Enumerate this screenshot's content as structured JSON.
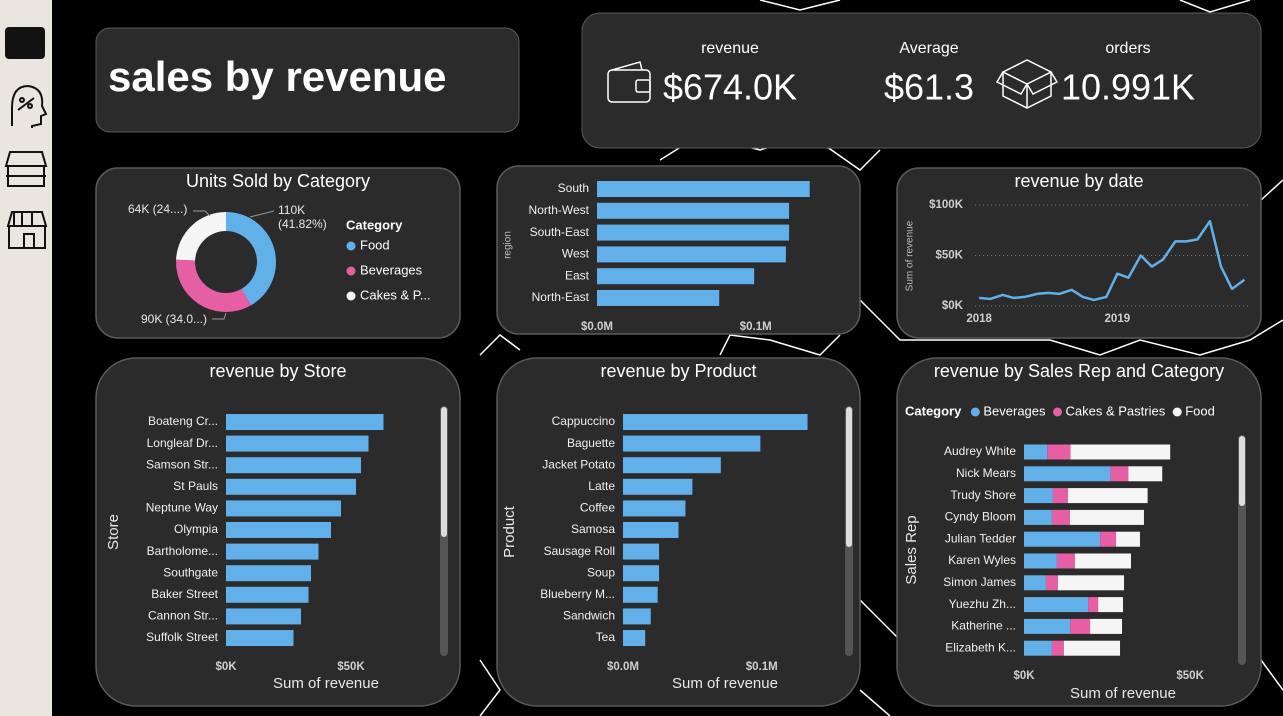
{
  "title": "sales by revenue",
  "kpis": [
    {
      "label": "revenue",
      "value": "$674.0K"
    },
    {
      "label": "Average",
      "value": "$61.3"
    },
    {
      "label": "orders",
      "value": "10.991K"
    }
  ],
  "chart_data": [
    {
      "type": "pie",
      "donut": true,
      "title": "Units Sold by Category",
      "legend_title": "Category",
      "categories": [
        "Food",
        "Beverages",
        "Cakes & P..."
      ],
      "values": [
        110000,
        90000,
        64000
      ],
      "value_labels": [
        "110K (41.82%)",
        "90K (34.0...)",
        "64K (24....)"
      ],
      "colors": [
        "#62b0ea",
        "#e65fa5",
        "#f5f5f5"
      ]
    },
    {
      "type": "bar",
      "orientation": "horizontal",
      "y_label": "region",
      "categories": [
        "South",
        "North-West",
        "South-East",
        "West",
        "East",
        "North-East"
      ],
      "values": [
        0.134,
        0.121,
        0.121,
        0.119,
        0.099,
        0.077
      ],
      "color": "#62b0ea",
      "xlim": [
        0,
        0.16
      ],
      "xticks": [
        {
          "value": 0,
          "label": "$0.0M"
        },
        {
          "value": 0.1,
          "label": "$0.1M"
        }
      ]
    },
    {
      "type": "line",
      "title": "revenue by date",
      "y_label": "Sum of revenue",
      "color": "#62b0ea",
      "grid": true,
      "x": [
        2018,
        2018.08,
        2018.17,
        2018.25,
        2018.33,
        2018.42,
        2018.5,
        2018.58,
        2018.67,
        2018.75,
        2018.83,
        2018.92,
        2019,
        2019.08,
        2019.17,
        2019.25,
        2019.33,
        2019.42,
        2019.5,
        2019.58,
        2019.67,
        2019.75,
        2019.83,
        2019.92
      ],
      "values": [
        8000,
        7000,
        11000,
        8000,
        9000,
        12000,
        13000,
        12000,
        16000,
        9000,
        6000,
        9000,
        32000,
        28000,
        50000,
        39000,
        46000,
        64000,
        64000,
        66000,
        84000,
        39000,
        17000,
        26000
      ],
      "xlim": [
        2017.97,
        2019.96
      ],
      "xticks": [
        2018,
        2019
      ],
      "ylim": [
        0,
        105000
      ],
      "yticks": [
        {
          "value": 0,
          "label": "$0K"
        },
        {
          "value": 50000,
          "label": "$50K"
        },
        {
          "value": 100000,
          "label": "$100K"
        }
      ]
    },
    {
      "type": "bar",
      "orientation": "horizontal",
      "title": "revenue by Store",
      "y_label": "Store",
      "x_label": "Sum of revenue",
      "categories": [
        "Boateng Cr...",
        "Longleaf Dr...",
        "Samson Str...",
        "St Pauls",
        "Neptune Way",
        "Olympia",
        "Bartholome...",
        "Southgate",
        "Baker Street",
        "Cannon Str...",
        "Suffolk Street"
      ],
      "values": [
        63000,
        57000,
        54000,
        52000,
        46000,
        42000,
        37000,
        34000,
        33000,
        30000,
        27000
      ],
      "color": "#62b0ea",
      "xlim": [
        0,
        88000
      ],
      "xticks": [
        {
          "value": 0,
          "label": "$0K"
        },
        {
          "value": 50000,
          "label": "$50K"
        }
      ]
    },
    {
      "type": "bar",
      "orientation": "horizontal",
      "title": "revenue by Product",
      "y_label": "Product",
      "x_label": "Sum of revenue",
      "categories": [
        "Cappuccino",
        "Baguette",
        "Jacket Potato",
        "Latte",
        "Coffee",
        "Samosa",
        "Sausage Roll",
        "Soup",
        "Blueberry M...",
        "Sandwich",
        "Tea"
      ],
      "values": [
        0.133,
        0.099,
        0.0705,
        0.05,
        0.045,
        0.04,
        0.026,
        0.026,
        0.025,
        0.02,
        0.016
      ],
      "color": "#62b0ea",
      "xlim": [
        0,
        0.16
      ],
      "xticks": [
        {
          "value": 0,
          "label": "$0.0M"
        },
        {
          "value": 0.1,
          "label": "$0.1M"
        }
      ]
    },
    {
      "type": "bar",
      "orientation": "horizontal",
      "stacked": true,
      "title": "revenue by Sales Rep and Category",
      "legend_title": "Category",
      "y_label": "Sales Rep",
      "x_label": "Sum of revenue",
      "categories": [
        "Audrey White",
        "Nick Mears",
        "Trudy Shore",
        "Cyndy Bloom",
        "Julian Tedder",
        "Karen Wyles",
        "Simon James",
        "Yuezhu Zh...",
        "Katherine ...",
        "Elizabeth K..."
      ],
      "series": [
        {
          "name": "Beverages",
          "color": "#62b0ea",
          "values": [
            7000,
            26000,
            8700,
            8400,
            22900,
            9900,
            6600,
            19300,
            13900,
            8400
          ]
        },
        {
          "name": "Cakes & Pastries",
          "color": "#e65fa5",
          "values": [
            7000,
            5400,
            4500,
            5400,
            4800,
            5400,
            3600,
            3000,
            6000,
            3600
          ]
        },
        {
          "name": "Food",
          "color": "#f5f5f5",
          "values": [
            30000,
            10200,
            24000,
            22300,
            7200,
            16900,
            19900,
            7500,
            9600,
            16900
          ]
        }
      ],
      "xlim": [
        0,
        65000
      ],
      "xticks": [
        {
          "value": 0,
          "label": "$0K"
        },
        {
          "value": 50000,
          "label": "$50K"
        }
      ]
    }
  ]
}
